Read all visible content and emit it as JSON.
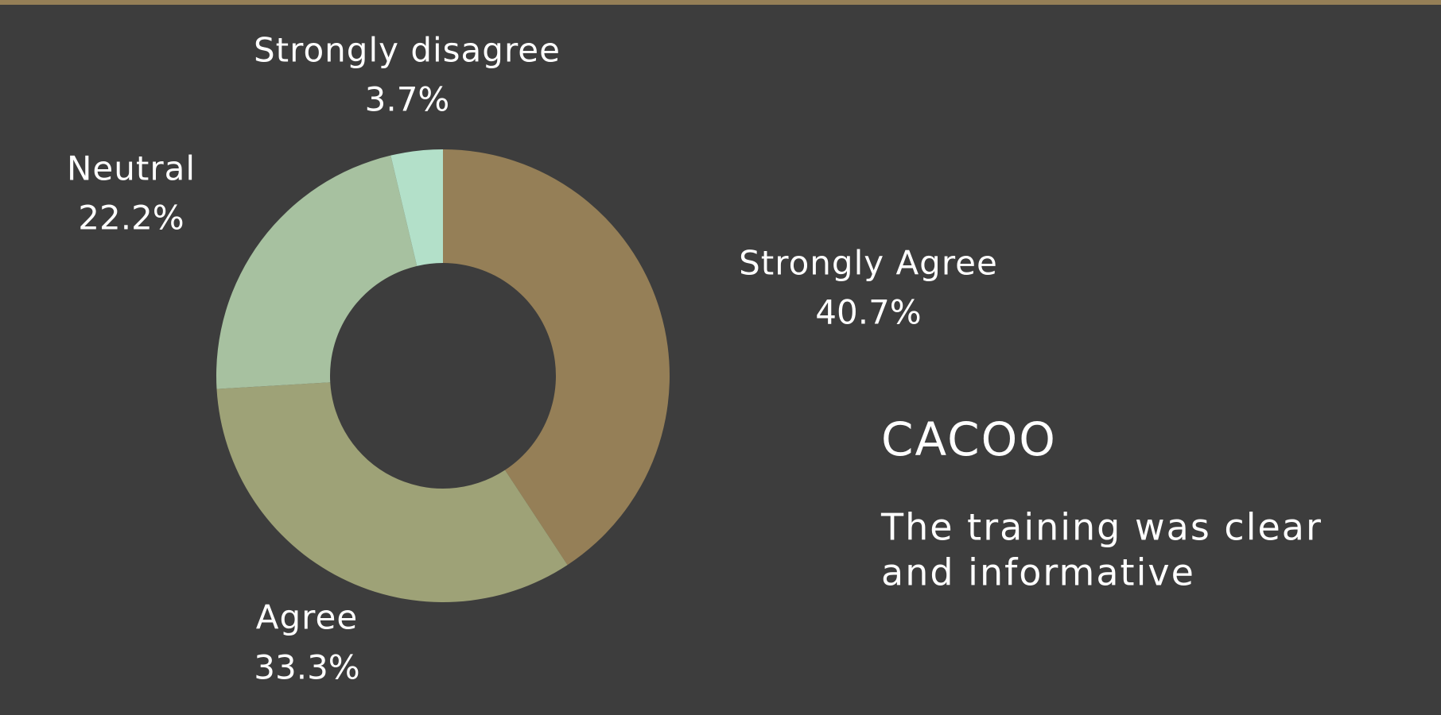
{
  "chart_data": {
    "type": "donut",
    "title": "CACOO",
    "subtitle": [
      "The training was clear",
      "and informative"
    ],
    "categories": [
      "Strongly Agree",
      "Agree",
      "Neutral",
      "Strongly disagree"
    ],
    "values": [
      40.7,
      33.3,
      22.2,
      3.7
    ],
    "value_labels": [
      "40.7%",
      "33.3%",
      "22.2%",
      "3.7%"
    ],
    "colors": [
      "#957f57",
      "#9ea277",
      "#a7c1a0",
      "#b3e0c9"
    ]
  }
}
